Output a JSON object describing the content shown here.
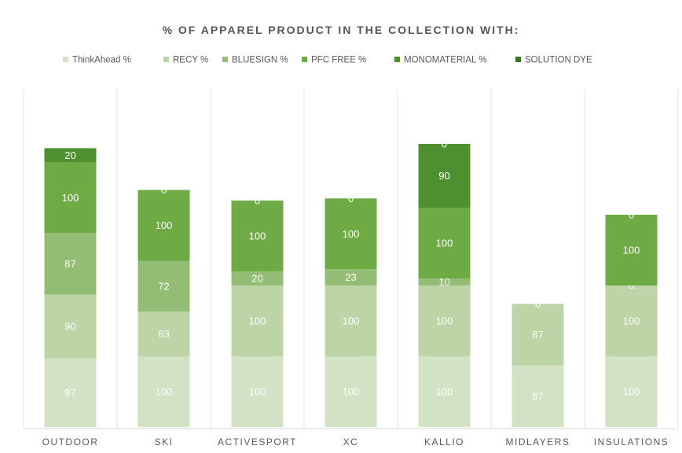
{
  "chart_data": {
    "type": "bar",
    "stacked": true,
    "title": "% OF APPAREL PRODUCT IN THE COLLECTION WITH:",
    "xlabel": "",
    "ylabel": "",
    "legend_position": "top",
    "grid": false,
    "categories": [
      "OUTDOOR",
      "SKI",
      "ACTIVESPORT",
      "XC",
      "KALLIO",
      "MIDLAYERS",
      "INSULATIONS"
    ],
    "series": [
      {
        "name": "ThinkAhead %",
        "color": "#d3e2c4",
        "values": [
          97,
          100,
          100,
          100,
          100,
          87,
          100
        ]
      },
      {
        "name": "RECY %",
        "color": "#bdd4a7",
        "values": [
          90,
          63,
          100,
          100,
          100,
          87,
          100
        ]
      },
      {
        "name": "BLUESIGN %",
        "color": "#93bd74",
        "values": [
          87,
          72,
          20,
          23,
          10,
          null,
          0
        ]
      },
      {
        "name": "PFC FREE %",
        "color": "#6fab45",
        "values": [
          100,
          100,
          100,
          100,
          100,
          null,
          100
        ]
      },
      {
        "name": "MONOMATERIAL %",
        "color": "#4e9030",
        "values": [
          20,
          0,
          0,
          0,
          90,
          0,
          0
        ]
      },
      {
        "name": "SOLUTION DYE",
        "color": "#3c7524",
        "values": [
          null,
          null,
          null,
          null,
          0,
          null,
          null
        ]
      }
    ]
  }
}
